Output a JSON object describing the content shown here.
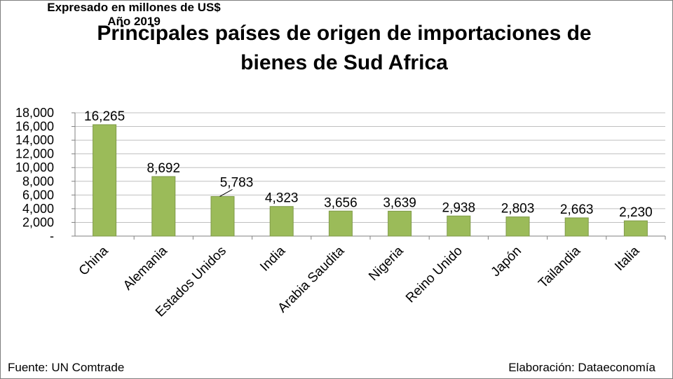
{
  "chart_data": {
    "type": "bar",
    "title": "Principales países de origen de importaciones de bienes de Sud Africa",
    "title_lines": [
      "Principales países de origen de importaciones de",
      "bienes de Sud Africa"
    ],
    "categories": [
      "China",
      "Alemania",
      "Estados Unidos",
      "India",
      "Arabia Saudita",
      "Nigeria",
      "Reino Unido",
      "Japón",
      "Tailandia",
      "Italia"
    ],
    "values": [
      16265,
      8692,
      5783,
      4323,
      3656,
      3639,
      2938,
      2803,
      2663,
      2230
    ],
    "value_labels": [
      "16,265",
      "8,692",
      "5,783",
      "4,323",
      "3,656",
      "3,639",
      "2,938",
      "2,803",
      "2,663",
      "2,230"
    ],
    "ylim": [
      0,
      18000
    ],
    "yticks": [
      0,
      2000,
      4000,
      6000,
      8000,
      10000,
      12000,
      14000,
      16000,
      18000
    ],
    "ytick_labels": [
      "-",
      "2,000",
      "4,000",
      "6,000",
      "8,000",
      "10,000",
      "12,000",
      "14,000",
      "16,000",
      "18,000"
    ],
    "xlabel": "",
    "ylabel": "",
    "grid": true,
    "legend": "none",
    "bar_color": "#9bbb59",
    "bar_edge_color": "#7f9a48",
    "grid_color": "#bfbfbf"
  },
  "footer": {
    "source": "Fuente: UN Comtrade",
    "note_line1": "Expresado en millones de US$",
    "note_line2": "Año 2019",
    "credit": "Elaboración: Dataeconomía"
  }
}
